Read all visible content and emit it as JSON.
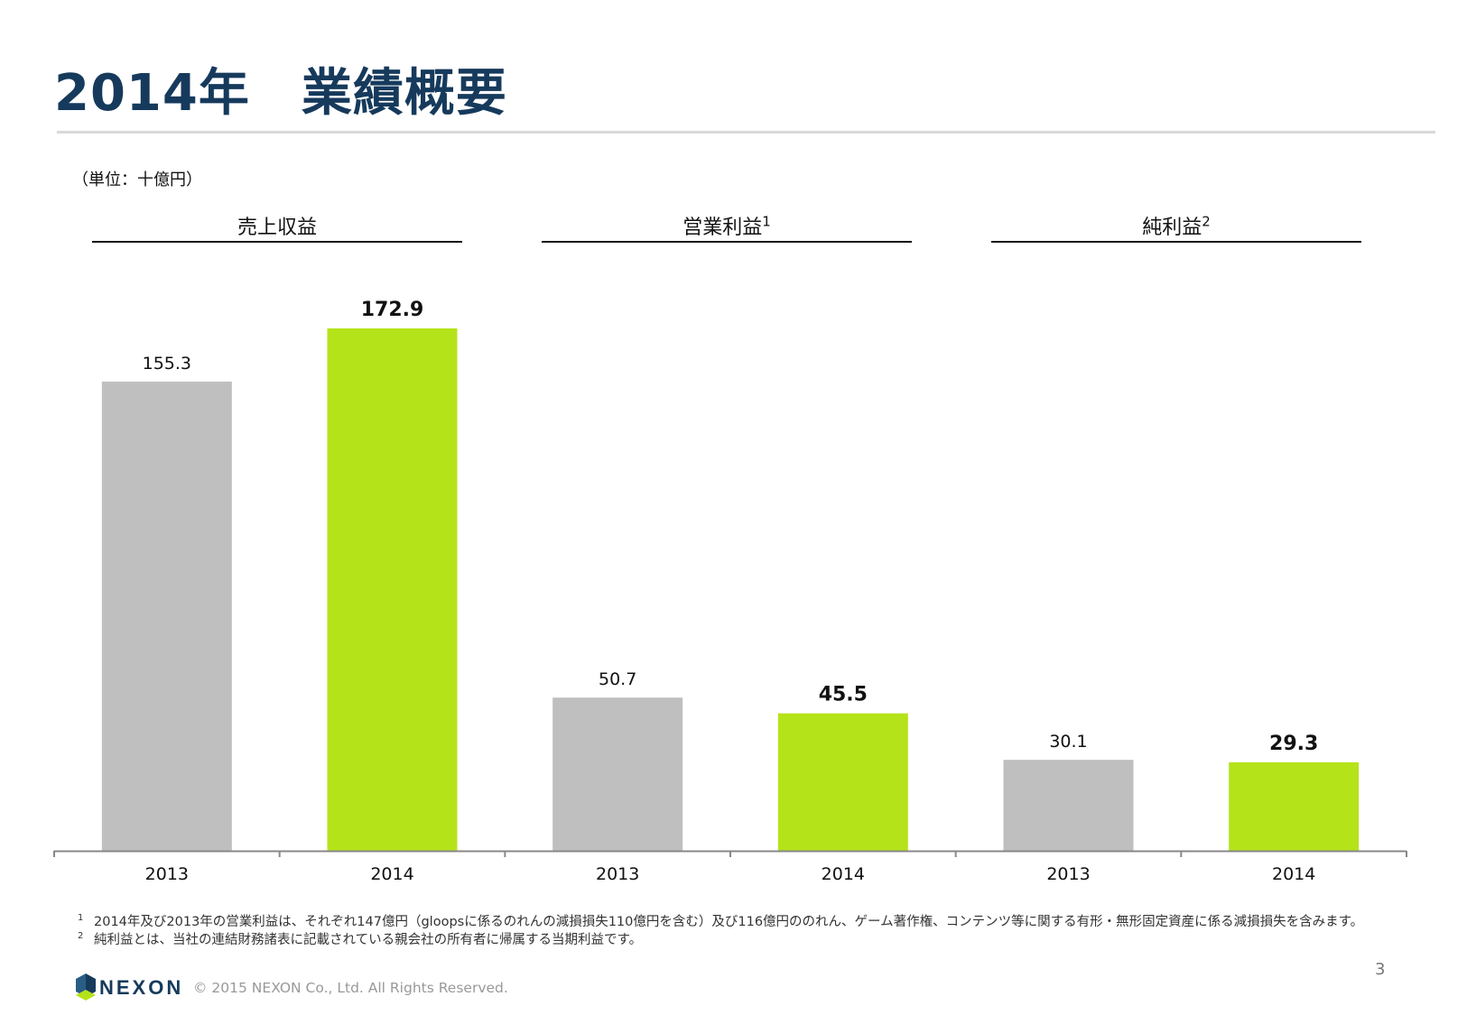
{
  "title": "2014年　業績概要",
  "unit": "（単位：十億円）",
  "groups": [
    {
      "label": "売上収益",
      "sup": ""
    },
    {
      "label": "営業利益",
      "sup": "1"
    },
    {
      "label": "純利益",
      "sup": "2"
    }
  ],
  "chart_data": {
    "type": "bar",
    "title": "2014年　業績概要",
    "ylabel": "十億円",
    "ylim": [
      0,
      172.9
    ],
    "groups": [
      "売上収益",
      "営業利益",
      "純利益"
    ],
    "categories": [
      "2013",
      "2014",
      "2013",
      "2014",
      "2013",
      "2014"
    ],
    "values": [
      155.3,
      172.9,
      50.7,
      45.5,
      30.1,
      29.3
    ],
    "value_labels": [
      "155.3",
      "172.9",
      "50.7",
      "45.5",
      "30.1",
      "29.3"
    ],
    "series_colors": {
      "2013": "#bfbfbf",
      "2014": "#b5e31a"
    },
    "emphasis": [
      "2014"
    ]
  },
  "footnotes": [
    {
      "mark": "1",
      "text": "2014年及び2013年の営業利益は、それぞれ147億円（gloopsに係るのれんの減損損失110億円を含む）及び116億円ののれん、ゲーム著作権、コンテンツ等に関する有形・無形固定資産に係る減損損失を含みます。"
    },
    {
      "mark": "2",
      "text": "純利益とは、当社の連結財務諸表に記載されている親会社の所有者に帰属する当期利益です。"
    }
  ],
  "footer": {
    "brand": "NEXON",
    "copyright": "© 2015 NEXON Co., Ltd. All Rights Reserved.",
    "page_number": "3"
  }
}
